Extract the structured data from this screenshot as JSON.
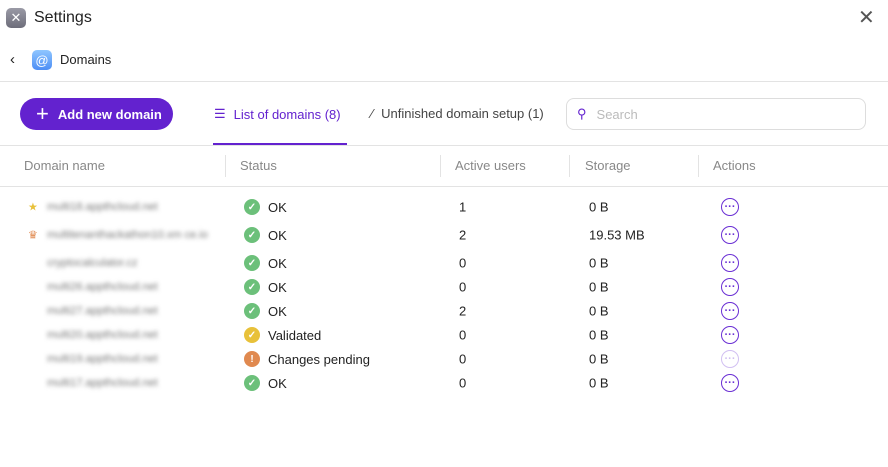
{
  "window": {
    "title": "Settings"
  },
  "breadcrumb": {
    "label": "Domains"
  },
  "toolbar": {
    "add_label": "Add new domain",
    "search_placeholder": "Search"
  },
  "tabs": [
    {
      "label": "List of domains (8)",
      "active": true
    },
    {
      "label": "Unfinished domain setup (1)",
      "active": false
    }
  ],
  "colors": {
    "accent": "#6322cf",
    "ok": "#6cc07a",
    "validated": "#e8c13a",
    "pending": "#e0894f"
  },
  "table": {
    "headers": [
      "Domain name",
      "Status",
      "Active users",
      "Storage",
      "Actions"
    ],
    "rows": [
      {
        "name": "multi18.appthcloud.net",
        "badge": "star",
        "status": "OK",
        "status_type": "ok",
        "users": "1",
        "storage": "0 B",
        "actions_enabled": true
      },
      {
        "name": "multitenanthackathon10.xm ce.io",
        "badge": "crown",
        "status": "OK",
        "status_type": "ok",
        "users": "2",
        "storage": "19.53 MB",
        "actions_enabled": true
      },
      {
        "name": "cryptocalculator.cz",
        "badge": "",
        "status": "OK",
        "status_type": "ok",
        "users": "0",
        "storage": "0 B",
        "actions_enabled": true
      },
      {
        "name": "multi26.appthcloud.net",
        "badge": "",
        "status": "OK",
        "status_type": "ok",
        "users": "0",
        "storage": "0 B",
        "actions_enabled": true
      },
      {
        "name": "multi27.appthcloud.net",
        "badge": "",
        "status": "OK",
        "status_type": "ok",
        "users": "2",
        "storage": "0 B",
        "actions_enabled": true
      },
      {
        "name": "multi20.appthcloud.net",
        "badge": "",
        "status": "Validated",
        "status_type": "validated",
        "users": "0",
        "storage": "0 B",
        "actions_enabled": true
      },
      {
        "name": "multi19.appthcloud.net",
        "badge": "",
        "status": "Changes pending",
        "status_type": "pending",
        "users": "0",
        "storage": "0 B",
        "actions_enabled": false
      },
      {
        "name": "multi17.appthcloud.net",
        "badge": "",
        "status": "OK",
        "status_type": "ok",
        "users": "0",
        "storage": "0 B",
        "actions_enabled": true
      }
    ]
  }
}
